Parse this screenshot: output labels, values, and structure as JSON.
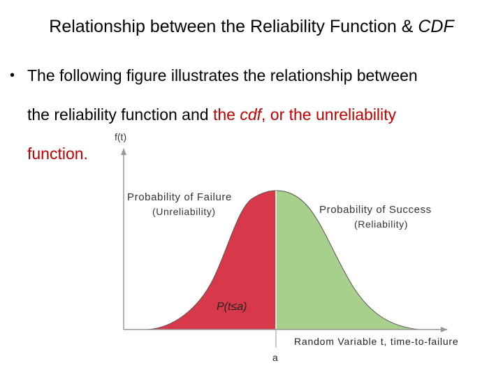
{
  "slide": {
    "title_main": "Relationship between the Reliability Function & ",
    "title_italic": "CDF",
    "bullet_symbol": "•",
    "bullet_line1": "The following figure illustrates the relationship between",
    "bullet_line2_black": "the reliability function and ",
    "bullet_line2_red1": "the ",
    "bullet_line2_red_italic": "cdf",
    "bullet_line2_red2": ", or the unreliability",
    "bullet_line3_red": "function."
  },
  "figure": {
    "y_axis_label": "f(t)",
    "x_axis_label": "Random Variable t, time-to-failure",
    "threshold_label": "a",
    "failure_title": "Probability of Failure",
    "failure_subtitle": "(Unreliability)",
    "success_title": "Probability of Success",
    "success_subtitle": "(Reliability)",
    "area_label": "P(t≤a)",
    "colors": {
      "failure_fill": "#d7384a",
      "success_fill": "#a8d08d",
      "axis": "#999999",
      "curve_stroke": "#444444"
    }
  }
}
